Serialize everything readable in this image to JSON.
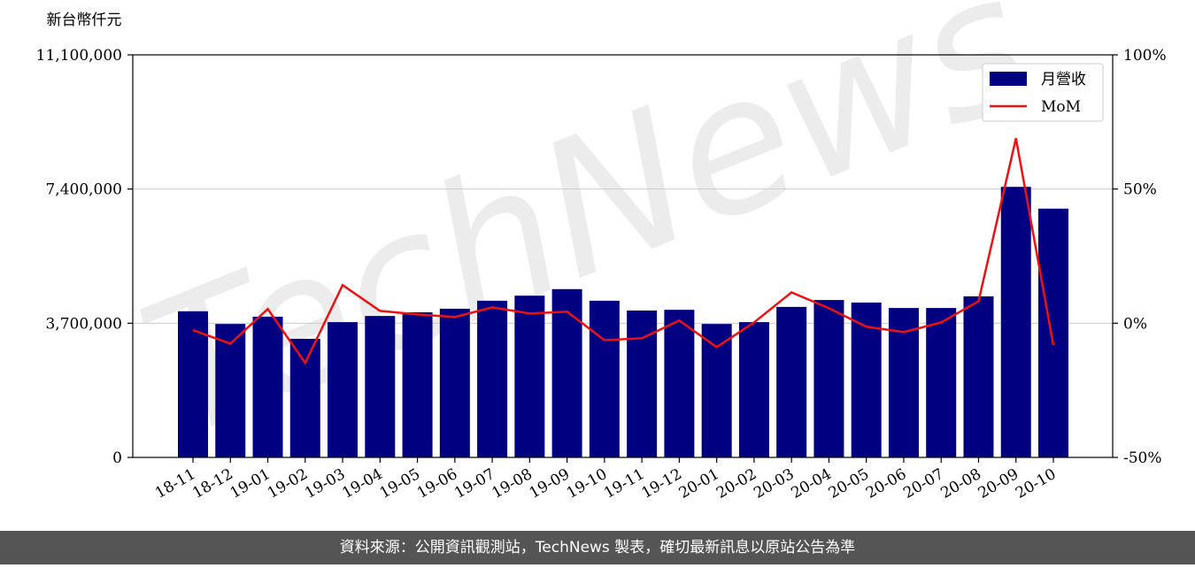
{
  "chart_data": {
    "type": "bar-line",
    "y_label": "新台幣仟元",
    "watermark": "TechNews",
    "footer": "資料來源：公開資訊觀測站，TechNews 製表，確切最新訊息以原站公告為準",
    "categories": [
      "18-11",
      "18-12",
      "19-01",
      "19-02",
      "19-03",
      "19-04",
      "19-05",
      "19-06",
      "19-07",
      "19-08",
      "19-09",
      "19-10",
      "19-11",
      "19-12",
      "20-01",
      "20-02",
      "20-03",
      "20-04",
      "20-05",
      "20-06",
      "20-07",
      "20-08",
      "20-09",
      "20-10"
    ],
    "series": [
      {
        "name": "月營收",
        "color": "#000080",
        "type": "bar",
        "values": [
          4030000,
          3680000,
          3880000,
          3270000,
          3730000,
          3900000,
          4000000,
          4100000,
          4320000,
          4460000,
          4640000,
          4320000,
          4050000,
          4070000,
          3680000,
          3730000,
          4150000,
          4340000,
          4270000,
          4120000,
          4120000,
          4440000,
          7460000,
          6860000
        ]
      },
      {
        "name": "MoM",
        "color": "#ee1111",
        "type": "line",
        "axis": "y2",
        "values": [
          -2.6,
          -7.6,
          5.3,
          -14.8,
          14.2,
          4.6,
          3.3,
          2.3,
          5.9,
          3.6,
          4.3,
          -6.3,
          -5.6,
          1.0,
          -8.9,
          0.3,
          11.5,
          5.6,
          -1.3,
          -3.3,
          0.3,
          8.2,
          68.9,
          -8.2
        ]
      }
    ],
    "ylim": [
      0,
      11100000
    ],
    "yticks": [
      0,
      {
        "value": 3700000,
        "label": "3,700,000"
      },
      {
        "value": 7400000,
        "label": "7,400,000"
      },
      {
        "value": 11100000,
        "label": "11,100,000"
      }
    ],
    "y2lim": [
      -50,
      100
    ],
    "y2ticks": [
      {
        "value": -50,
        "label": "-50%"
      },
      {
        "value": 0,
        "label": "0%"
      },
      {
        "value": 50,
        "label": "50%"
      },
      {
        "value": 100,
        "label": "100%"
      }
    ],
    "grid": true,
    "legend": "upper right"
  }
}
